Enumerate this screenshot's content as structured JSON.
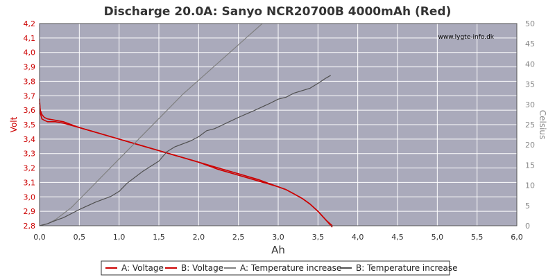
{
  "chart_data": {
    "type": "line",
    "title": "Discharge 20.0A: Sanyo NCR20700B 4000mAh (Red)",
    "watermark": "www.lygte-info.dk",
    "xlabel": "Ah",
    "ylabel_left": "Volt",
    "ylabel_right": "Celsius",
    "xlim": [
      0,
      6
    ],
    "ylim_left": [
      2.8,
      4.2
    ],
    "ylim_right": [
      0,
      50
    ],
    "x_ticks": [
      "0,0",
      "0,5",
      "1,0",
      "1,5",
      "2,0",
      "2,5",
      "3,0",
      "3,5",
      "4,0",
      "4,5",
      "5,0",
      "5,5",
      "6,0"
    ],
    "y_left_ticks": [
      "2,8",
      "2,9",
      "3,0",
      "3,1",
      "3,2",
      "3,3",
      "3,4",
      "3,5",
      "3,6",
      "3,7",
      "3,8",
      "3,9",
      "4,0",
      "4,1",
      "4,2"
    ],
    "y_right_ticks": [
      "0",
      "5",
      "10",
      "15",
      "20",
      "25",
      "30",
      "35",
      "40",
      "45",
      "50"
    ],
    "grid": true,
    "plot_background": "#aaaabb",
    "legend_position": "bottom",
    "series": [
      {
        "name": "A: Voltage",
        "axis": "left",
        "color": "#cc0000",
        "x": [
          0,
          0.01,
          0.03,
          0.06,
          0.1,
          0.2,
          0.3,
          0.5,
          0.75,
          1.0,
          1.25,
          1.5,
          1.75,
          2.0,
          2.25,
          2.5,
          2.75,
          3.0,
          3.1,
          3.2,
          3.3,
          3.4,
          3.5,
          3.6,
          3.68
        ],
        "y": [
          3.65,
          3.6,
          3.57,
          3.55,
          3.54,
          3.53,
          3.52,
          3.48,
          3.44,
          3.4,
          3.36,
          3.32,
          3.28,
          3.24,
          3.2,
          3.16,
          3.12,
          3.07,
          3.05,
          3.02,
          2.99,
          2.95,
          2.9,
          2.84,
          2.79
        ]
      },
      {
        "name": "B: Voltage",
        "axis": "left",
        "color": "#cc0000",
        "x": [
          0,
          0.01,
          0.03,
          0.06,
          0.1,
          0.2,
          0.3,
          0.5,
          0.75,
          1.0,
          1.25,
          1.5,
          1.75,
          2.0,
          2.25,
          2.5,
          2.75,
          3.0,
          3.1,
          3.2,
          3.3,
          3.4,
          3.5,
          3.6,
          3.68
        ],
        "y": [
          3.68,
          3.58,
          3.54,
          3.53,
          3.52,
          3.52,
          3.51,
          3.48,
          3.44,
          3.4,
          3.36,
          3.32,
          3.28,
          3.24,
          3.19,
          3.15,
          3.11,
          3.07,
          3.05,
          3.02,
          2.99,
          2.95,
          2.9,
          2.84,
          2.8
        ]
      },
      {
        "name": "A: Temperature increase",
        "axis": "right",
        "color": "#808080",
        "x": [
          0,
          0.1,
          0.2,
          0.3,
          0.4,
          0.5,
          0.6,
          0.8,
          1.0,
          1.2,
          1.4,
          1.6,
          1.8,
          2.0,
          2.2,
          2.4,
          2.6,
          2.8
        ],
        "y": [
          0,
          0.5,
          1.5,
          3,
          4.5,
          6.5,
          8.5,
          12.5,
          16.5,
          20.5,
          24.5,
          28.5,
          32.5,
          36,
          39.5,
          43,
          46.5,
          50
        ]
      },
      {
        "name": "B: Temperature increase",
        "axis": "right",
        "color": "#505050",
        "x": [
          0,
          0.1,
          0.2,
          0.3,
          0.5,
          0.7,
          0.9,
          1.0,
          1.1,
          1.3,
          1.5,
          1.6,
          1.7,
          1.9,
          2.0,
          2.1,
          2.2,
          2.5,
          2.7,
          2.9,
          3.0,
          3.1,
          3.2,
          3.4,
          3.5,
          3.6,
          3.66
        ],
        "y": [
          0,
          0.5,
          1.3,
          2,
          4,
          5.8,
          7.3,
          8.5,
          10.5,
          13.5,
          16,
          18.3,
          19.5,
          21,
          22,
          23.5,
          24,
          26.8,
          28.5,
          30.3,
          31.3,
          31.8,
          32.8,
          34,
          35.2,
          36.5,
          37.2
        ]
      }
    ]
  }
}
